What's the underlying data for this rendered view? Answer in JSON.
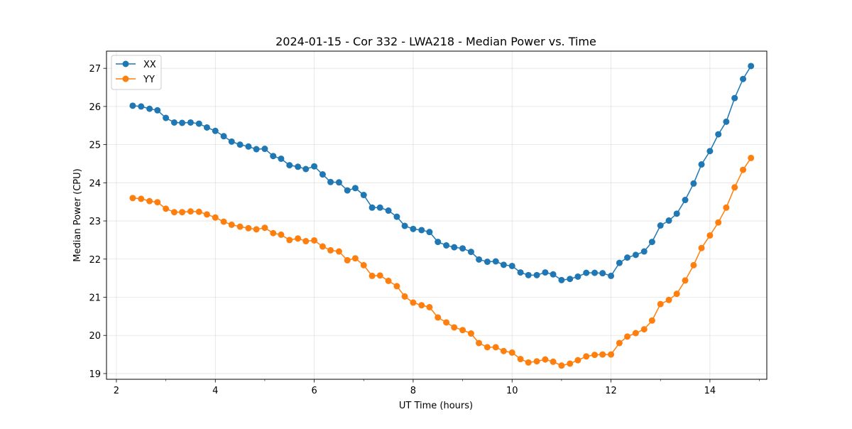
{
  "chart_data": {
    "type": "line",
    "title": "2024-01-15 - Cor 332 - LWA218 - Median Power vs. Time",
    "xlabel": "UT Time (hours)",
    "ylabel": "Median Power (CPU)",
    "xlim": [
      1.8,
      15.15
    ],
    "ylim": [
      18.85,
      27.45
    ],
    "x_ticks": [
      2,
      4,
      6,
      8,
      10,
      12,
      14
    ],
    "y_ticks": [
      19,
      20,
      21,
      22,
      23,
      24,
      25,
      26,
      27
    ],
    "grid": true,
    "legend_position": "upper-left",
    "x": [
      2.33,
      2.5,
      2.67,
      2.83,
      3.0,
      3.17,
      3.33,
      3.5,
      3.67,
      3.83,
      4.0,
      4.17,
      4.33,
      4.5,
      4.67,
      4.83,
      5.0,
      5.17,
      5.33,
      5.5,
      5.67,
      5.83,
      6.0,
      6.17,
      6.33,
      6.5,
      6.67,
      6.83,
      7.0,
      7.17,
      7.33,
      7.5,
      7.67,
      7.83,
      8.0,
      8.17,
      8.33,
      8.5,
      8.67,
      8.83,
      9.0,
      9.17,
      9.33,
      9.5,
      9.67,
      9.83,
      10.0,
      10.17,
      10.33,
      10.5,
      10.67,
      10.83,
      11.0,
      11.17,
      11.33,
      11.5,
      11.67,
      11.83,
      12.0,
      12.17,
      12.33,
      12.5,
      12.67,
      12.83,
      13.0,
      13.17,
      13.33,
      13.5,
      13.67,
      13.83,
      14.0,
      14.17,
      14.33,
      14.5,
      14.67,
      14.83
    ],
    "series": [
      {
        "name": "XX",
        "color": "#1f77b4",
        "values": [
          26.02,
          26.0,
          25.94,
          25.9,
          25.7,
          25.58,
          25.57,
          25.58,
          25.55,
          25.45,
          25.36,
          25.22,
          25.08,
          25.0,
          24.95,
          24.88,
          24.89,
          24.7,
          24.63,
          24.46,
          24.42,
          24.36,
          24.43,
          24.22,
          24.02,
          24.01,
          23.8,
          23.86,
          23.68,
          23.35,
          23.35,
          23.27,
          23.11,
          22.87,
          22.79,
          22.76,
          22.71,
          22.45,
          22.36,
          22.31,
          22.28,
          22.19,
          21.99,
          21.93,
          21.94,
          21.85,
          21.82,
          21.65,
          21.58,
          21.58,
          21.65,
          21.6,
          21.45,
          21.48,
          21.54,
          21.64,
          21.64,
          21.63,
          21.56,
          21.9,
          22.04,
          22.11,
          22.2,
          22.45,
          22.88,
          23.01,
          23.19,
          23.55,
          23.98,
          24.48,
          24.83,
          25.27,
          25.6,
          26.22,
          26.72,
          27.06
        ]
      },
      {
        "name": "YY",
        "color": "#ff7f0e",
        "values": [
          23.6,
          23.58,
          23.52,
          23.49,
          23.32,
          23.23,
          23.23,
          23.25,
          23.24,
          23.17,
          23.09,
          22.98,
          22.9,
          22.85,
          22.81,
          22.78,
          22.82,
          22.68,
          22.64,
          22.5,
          22.54,
          22.47,
          22.49,
          22.33,
          22.23,
          22.2,
          21.97,
          22.02,
          21.84,
          21.56,
          21.57,
          21.43,
          21.29,
          21.02,
          20.86,
          20.79,
          20.74,
          20.47,
          20.34,
          20.21,
          20.14,
          20.05,
          19.8,
          19.69,
          19.69,
          19.59,
          19.55,
          19.38,
          19.29,
          19.32,
          19.37,
          19.31,
          19.21,
          19.26,
          19.35,
          19.45,
          19.49,
          19.5,
          19.5,
          19.8,
          19.97,
          20.06,
          20.16,
          20.39,
          20.82,
          20.93,
          21.09,
          21.44,
          21.84,
          22.29,
          22.62,
          22.96,
          23.35,
          23.88,
          24.34,
          24.65
        ]
      }
    ]
  }
}
